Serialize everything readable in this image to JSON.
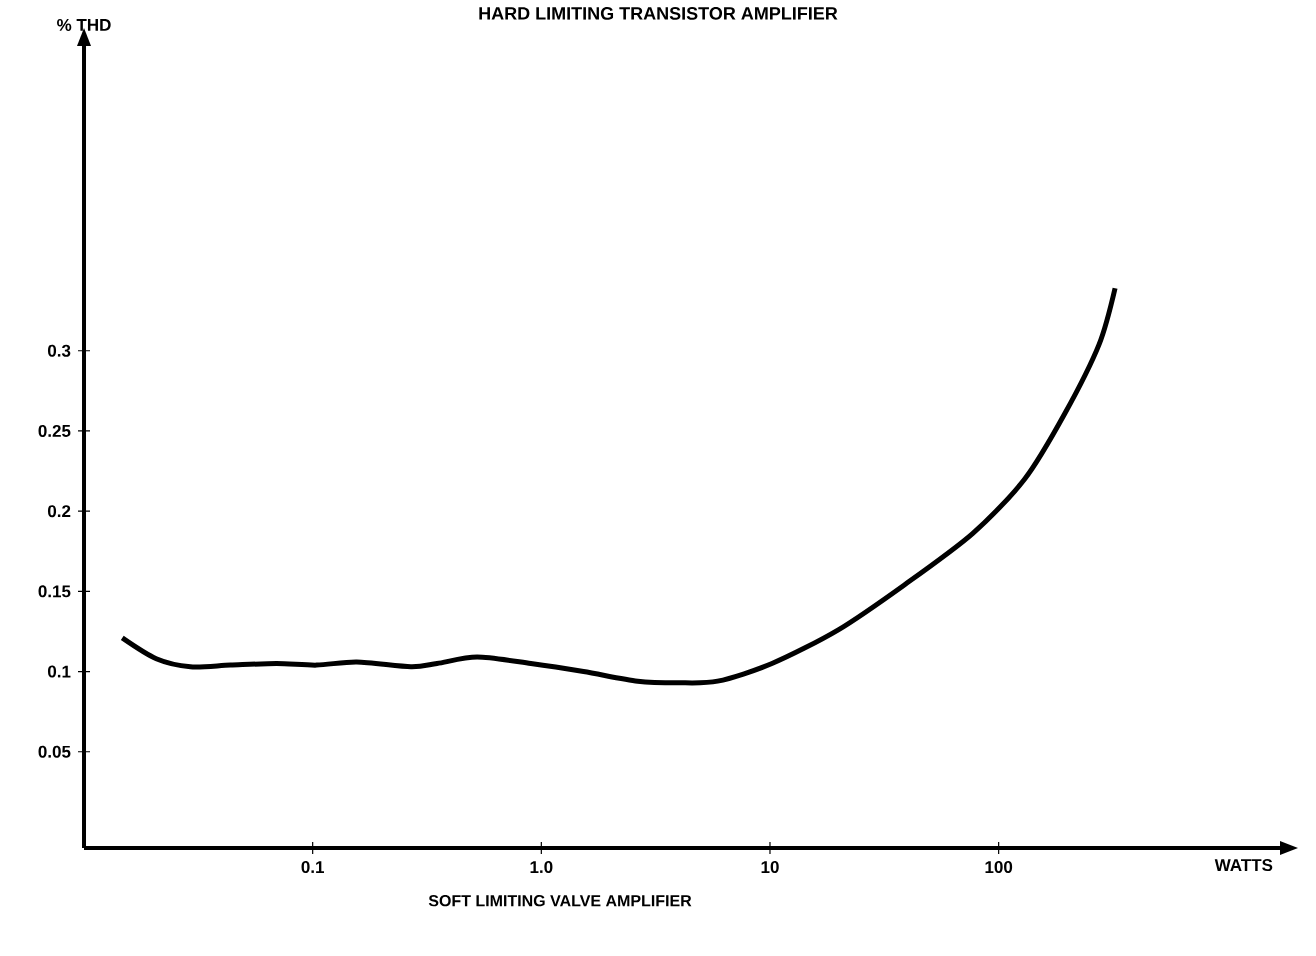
{
  "chart_data": {
    "type": "line",
    "title": "HARD LIMITING TRANSISTOR AMPLIFIER",
    "xlabel": "WATTS",
    "ylabel": "% THD",
    "annotations": [
      "SOFT LIMITING VALVE AMPLIFIER"
    ],
    "log": "x",
    "xlim": [
      0.01,
      1700
    ],
    "ylim": [
      -0.01,
      0.49
    ],
    "xticks": [
      0.1,
      {
        "value": 1,
        "label": "1.0"
      },
      10,
      100
    ],
    "yticks": [
      0.05,
      0.1,
      0.15,
      0.2,
      0.25,
      0.3
    ],
    "grid": false,
    "marker": "none",
    "line_style": "solid",
    "series": [
      {
        "color": "#000000",
        "x": [
          0.0147,
          0.0207,
          0.0292,
          0.0437,
          0.0695,
          0.104,
          0.156,
          0.269,
          0.35,
          0.524,
          0.9,
          1.53,
          2.64,
          3.95,
          5.9,
          10.2,
          19.9,
          38.7,
          76.9,
          130,
          195,
          275,
          323
        ],
        "values": [
          0.121,
          0.108,
          0.103,
          0.104,
          0.105,
          0.104,
          0.106,
          0.103,
          0.105,
          0.109,
          0.105,
          0.1,
          0.094,
          0.093,
          0.094,
          0.105,
          0.126,
          0.154,
          0.186,
          0.22,
          0.261,
          0.304,
          0.339
        ]
      }
    ]
  }
}
